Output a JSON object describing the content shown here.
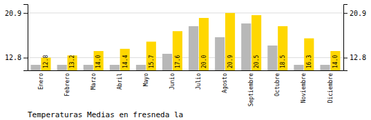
{
  "chart_data": {
    "type": "bar",
    "title": "Temperaturas Medias en fresneda la",
    "categories": [
      "Enero",
      "Febrero",
      "Marzo",
      "Abril",
      "Mayo",
      "Junio",
      "Julio",
      "Agosto",
      "Septiembre",
      "Octubre",
      "Noviembre",
      "Diciembre"
    ],
    "series": [
      {
        "color": "#B8B8B8",
        "values": [
          11.5,
          11.5,
          11.5,
          11.5,
          11.5,
          13.5,
          18.5,
          16.5,
          19.0,
          15.0,
          11.5,
          11.5
        ]
      },
      {
        "color": "#FFD700",
        "values": [
          12.8,
          13.2,
          14.0,
          14.4,
          15.7,
          17.6,
          20.0,
          20.9,
          20.5,
          18.5,
          16.3,
          14.0
        ],
        "value_labels": [
          "12.8",
          "13.2",
          "14.0",
          "14.4",
          "15.7",
          "17.6",
          "20.0",
          "20.9",
          "20.5",
          "18.5",
          "16.3",
          "14.0"
        ],
        "data_labels": true
      }
    ],
    "ylim": [
      10.5,
      22.5
    ],
    "yticks": [
      12.8,
      20.9
    ],
    "y2lim": [
      10.5,
      22.5
    ],
    "y2ticks": [
      12.8,
      20.9
    ],
    "grid": true
  }
}
